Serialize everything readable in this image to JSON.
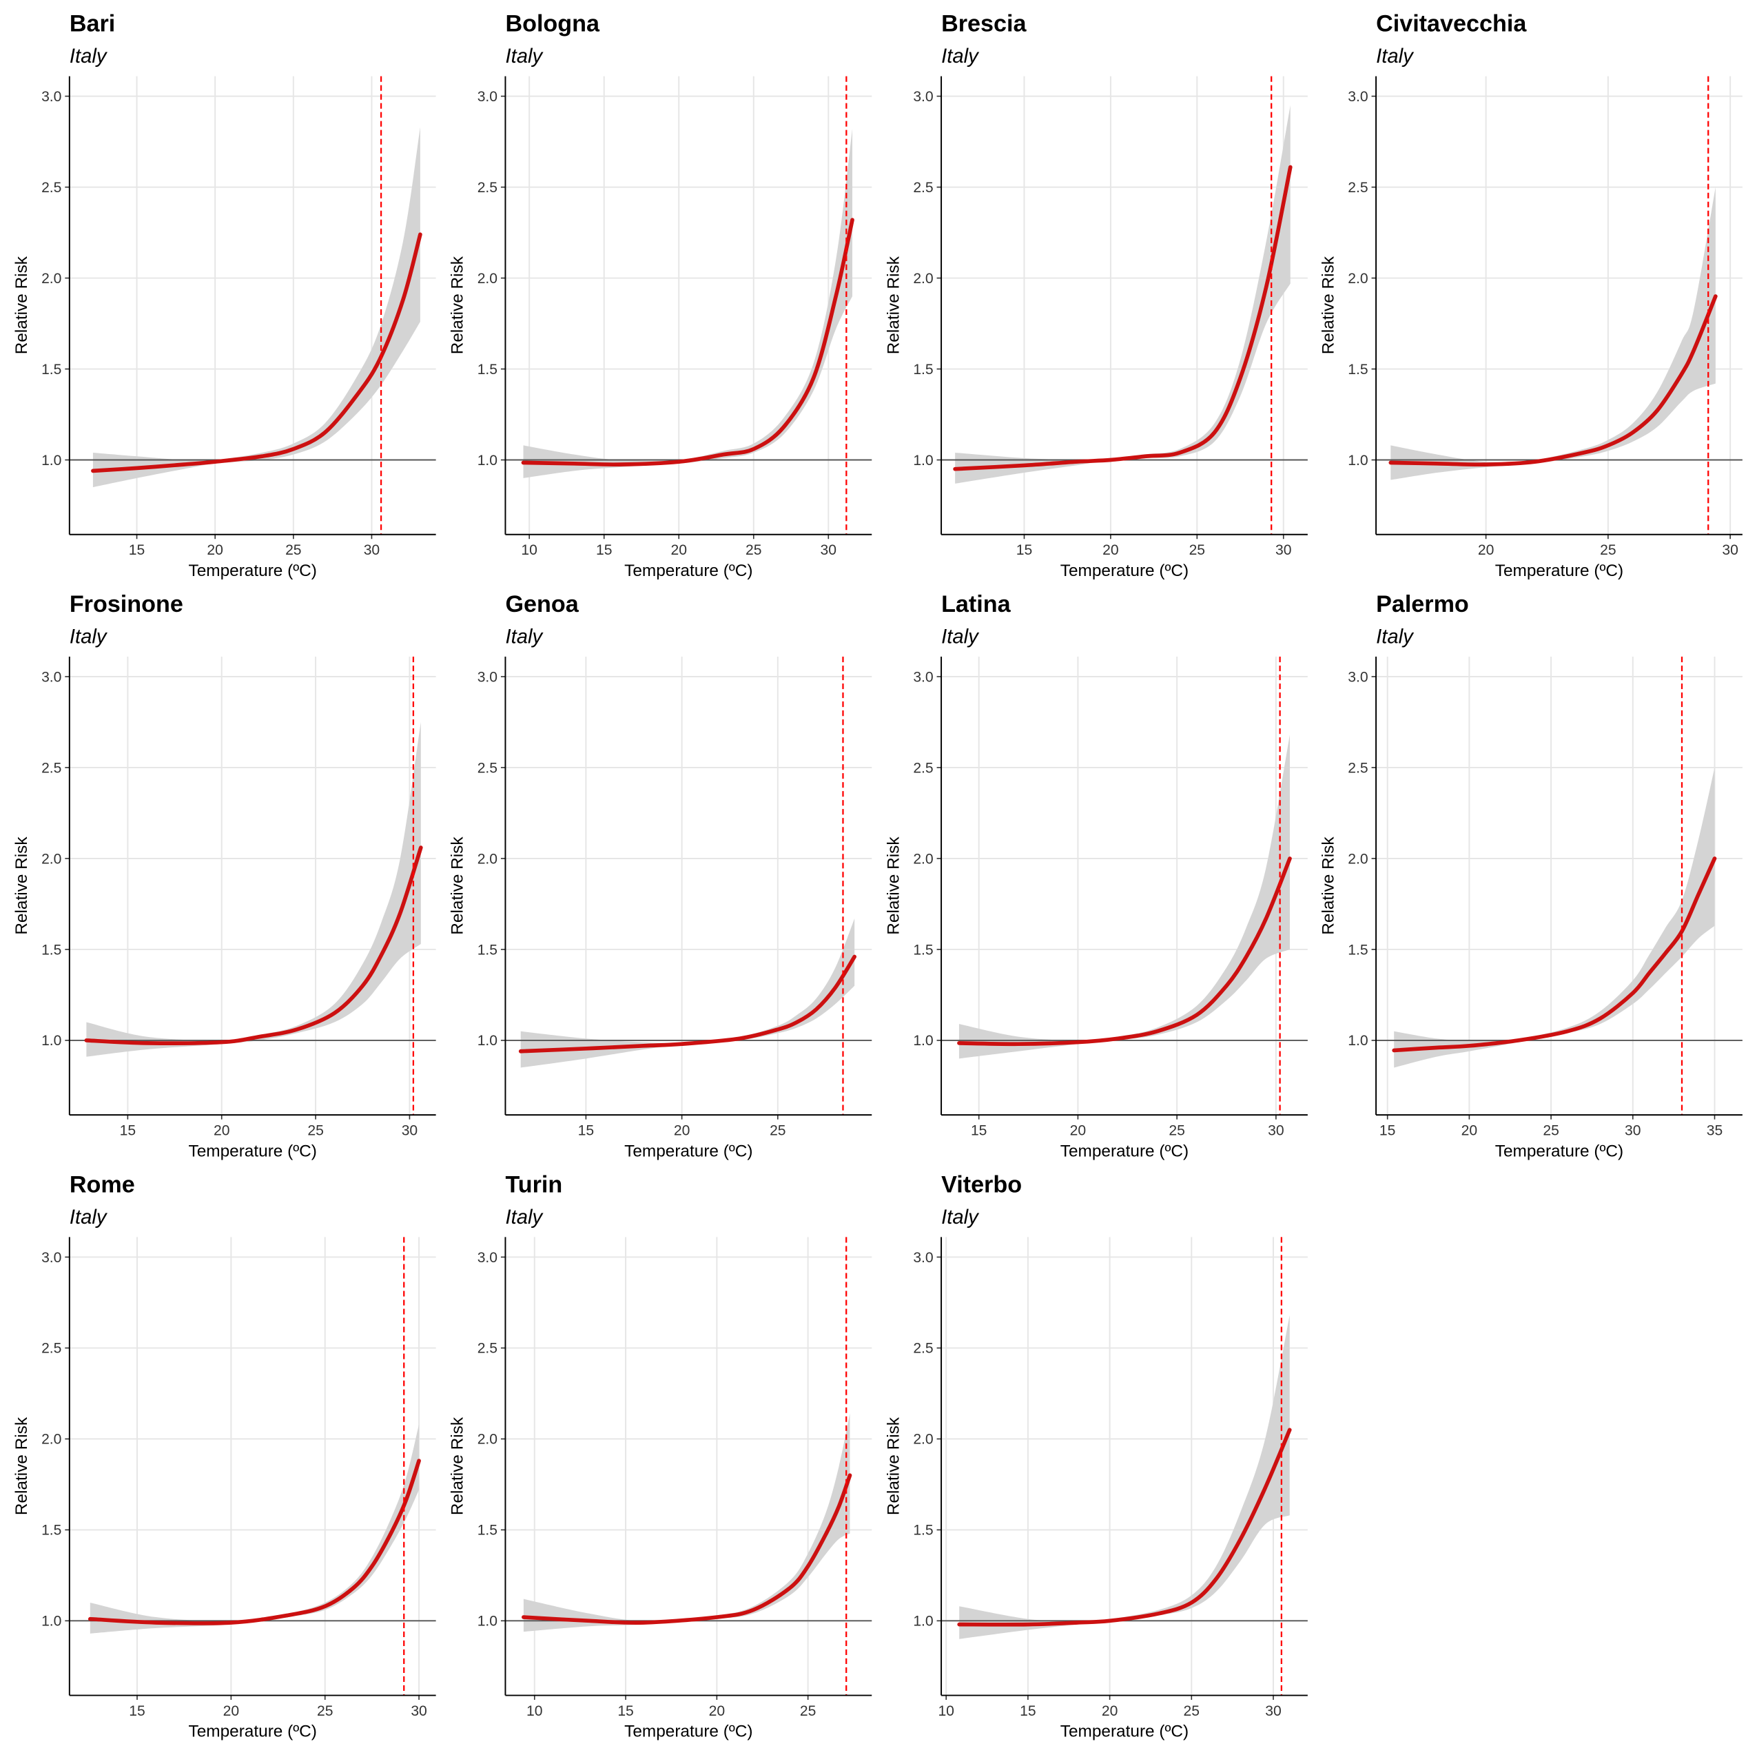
{
  "chart_data": [
    {
      "type": "line",
      "title": "Bari",
      "subtitle": "Italy",
      "x_label": "Temperature (ºC)",
      "y_label": "Relative Risk",
      "x": [
        12.2,
        15,
        18,
        20,
        23,
        25,
        27,
        29,
        30.5,
        32,
        33.1
      ],
      "values": [
        0.94,
        0.955,
        0.975,
        0.99,
        1.02,
        1.06,
        1.15,
        1.35,
        1.55,
        1.88,
        2.24
      ],
      "lower": [
        0.85,
        0.9,
        0.95,
        0.98,
        1.0,
        1.03,
        1.1,
        1.25,
        1.4,
        1.6,
        1.76
      ],
      "upper": [
        1.04,
        1.02,
        1.0,
        1.0,
        1.04,
        1.09,
        1.2,
        1.45,
        1.72,
        2.2,
        2.83
      ],
      "vline": 30.6,
      "hline": 1,
      "xlim": [
        10.7,
        34.1
      ],
      "xticks": [
        15,
        20,
        25,
        30
      ],
      "ylim": [
        0.59,
        3.11
      ],
      "yticks": [
        {
          "value": 1,
          "label": "1.0"
        },
        {
          "value": 1.5,
          "label": "1.5"
        },
        {
          "value": 2,
          "label": "2.0"
        },
        {
          "value": 2.5,
          "label": "2.5"
        },
        {
          "value": 3,
          "label": "3.0"
        }
      ],
      "grid": true,
      "color": "#cc1010",
      "band_color": "#d4d4d4",
      "vline_color": "#ff0000"
    },
    {
      "type": "line",
      "title": "Bologna",
      "subtitle": "Italy",
      "x_label": "Temperature (ºC)",
      "y_label": "Relative Risk",
      "x": [
        9.6,
        13,
        16,
        20,
        23,
        25,
        27,
        29,
        30.5,
        31.6
      ],
      "values": [
        0.985,
        0.98,
        0.975,
        0.99,
        1.03,
        1.06,
        1.18,
        1.45,
        1.9,
        2.32
      ],
      "lower": [
        0.9,
        0.94,
        0.96,
        0.98,
        1.01,
        1.04,
        1.14,
        1.38,
        1.72,
        1.9
      ],
      "upper": [
        1.08,
        1.03,
        1.0,
        1.0,
        1.05,
        1.09,
        1.23,
        1.53,
        2.1,
        2.82
      ],
      "vline": 31.2,
      "hline": 1,
      "xlim": [
        8.4,
        32.9
      ],
      "xticks": [
        10,
        15,
        20,
        25,
        30
      ],
      "ylim": [
        0.59,
        3.11
      ],
      "yticks": [
        {
          "value": 1,
          "label": "1.0"
        },
        {
          "value": 1.5,
          "label": "1.5"
        },
        {
          "value": 2,
          "label": "2.0"
        },
        {
          "value": 2.5,
          "label": "2.5"
        },
        {
          "value": 3,
          "label": "3.0"
        }
      ],
      "grid": true,
      "color": "#cc1010",
      "band_color": "#d4d4d4",
      "vline_color": "#ff0000"
    },
    {
      "type": "line",
      "title": "Brescia",
      "subtitle": "Italy",
      "x_label": "Temperature (ºC)",
      "y_label": "Relative Risk",
      "x": [
        11,
        15,
        18,
        20,
        22,
        24,
        26,
        27.5,
        29,
        30.4
      ],
      "values": [
        0.95,
        0.97,
        0.99,
        1.0,
        1.02,
        1.04,
        1.15,
        1.45,
        1.95,
        2.61
      ],
      "lower": [
        0.87,
        0.93,
        0.97,
        1.0,
        1.01,
        1.02,
        1.1,
        1.35,
        1.75,
        1.97
      ],
      "upper": [
        1.04,
        1.01,
        1.0,
        1.0,
        1.03,
        1.06,
        1.2,
        1.55,
        2.2,
        2.95
      ],
      "vline": 29.3,
      "hline": 1,
      "xlim": [
        10.2,
        31.4
      ],
      "xticks": [
        15,
        20,
        25,
        30
      ],
      "ylim": [
        0.59,
        3.11
      ],
      "yticks": [
        {
          "value": 1,
          "label": "1.0"
        },
        {
          "value": 1.5,
          "label": "1.5"
        },
        {
          "value": 2,
          "label": "2.0"
        },
        {
          "value": 2.5,
          "label": "2.5"
        },
        {
          "value": 3,
          "label": "3.0"
        }
      ],
      "grid": true,
      "color": "#cc1010",
      "band_color": "#d4d4d4",
      "vline_color": "#ff0000"
    },
    {
      "type": "line",
      "title": "Civitavecchia",
      "subtitle": "Italy",
      "x_label": "Temperature (ºC)",
      "y_label": "Relative Risk",
      "x": [
        16.1,
        18,
        20,
        22,
        24,
        25,
        26,
        27,
        28,
        28.5,
        29.4
      ],
      "values": [
        0.985,
        0.98,
        0.975,
        0.99,
        1.04,
        1.08,
        1.15,
        1.27,
        1.47,
        1.6,
        1.9
      ],
      "lower": [
        0.89,
        0.93,
        0.96,
        0.98,
        1.02,
        1.05,
        1.1,
        1.18,
        1.32,
        1.38,
        1.42
      ],
      "upper": [
        1.08,
        1.03,
        0.99,
        1.0,
        1.06,
        1.11,
        1.2,
        1.37,
        1.65,
        1.82,
        2.5
      ],
      "vline": 29.1,
      "hline": 1,
      "xlim": [
        15.5,
        30.5
      ],
      "xticks": [
        20,
        25,
        30
      ],
      "ylim": [
        0.59,
        3.11
      ],
      "yticks": [
        {
          "value": 1,
          "label": "1.0"
        },
        {
          "value": 1.5,
          "label": "1.5"
        },
        {
          "value": 2,
          "label": "2.0"
        },
        {
          "value": 2.5,
          "label": "2.5"
        },
        {
          "value": 3,
          "label": "3.0"
        }
      ],
      "grid": true,
      "color": "#cc1010",
      "band_color": "#d4d4d4",
      "vline_color": "#ff0000"
    },
    {
      "type": "line",
      "title": "Frosinone",
      "subtitle": "Italy",
      "x_label": "Temperature (ºC)",
      "y_label": "Relative Risk",
      "x": [
        12.8,
        16,
        20,
        22,
        24,
        26,
        27.5,
        28.5,
        29.5,
        30.6
      ],
      "values": [
        1.0,
        0.985,
        0.99,
        1.02,
        1.06,
        1.15,
        1.3,
        1.47,
        1.7,
        2.06
      ],
      "lower": [
        0.91,
        0.95,
        0.98,
        1.0,
        1.04,
        1.1,
        1.2,
        1.32,
        1.45,
        1.53
      ],
      "upper": [
        1.1,
        1.02,
        1.0,
        1.03,
        1.08,
        1.2,
        1.42,
        1.65,
        2.0,
        2.75
      ],
      "vline": 30.2,
      "hline": 1,
      "xlim": [
        11.9,
        31.4
      ],
      "xticks": [
        15,
        20,
        25,
        30
      ],
      "ylim": [
        0.59,
        3.11
      ],
      "yticks": [
        {
          "value": 1,
          "label": "1.0"
        },
        {
          "value": 1.5,
          "label": "1.5"
        },
        {
          "value": 2,
          "label": "2.0"
        },
        {
          "value": 2.5,
          "label": "2.5"
        },
        {
          "value": 3,
          "label": "3.0"
        }
      ],
      "grid": true,
      "color": "#cc1010",
      "band_color": "#d4d4d4",
      "vline_color": "#ff0000"
    },
    {
      "type": "line",
      "title": "Genoa",
      "subtitle": "Italy",
      "x_label": "Temperature (ºC)",
      "y_label": "Relative Risk",
      "x": [
        11.6,
        15,
        18,
        20,
        23,
        25,
        26,
        27,
        28,
        29
      ],
      "values": [
        0.94,
        0.955,
        0.97,
        0.98,
        1.01,
        1.06,
        1.1,
        1.17,
        1.29,
        1.46
      ],
      "lower": [
        0.85,
        0.9,
        0.95,
        0.975,
        1.0,
        1.04,
        1.07,
        1.12,
        1.2,
        1.3
      ],
      "upper": [
        1.05,
        1.01,
        0.99,
        0.99,
        1.02,
        1.08,
        1.14,
        1.23,
        1.4,
        1.67
      ],
      "vline": 28.4,
      "hline": 1,
      "xlim": [
        10.8,
        29.9
      ],
      "xticks": [
        15,
        20,
        25
      ],
      "ylim": [
        0.59,
        3.11
      ],
      "yticks": [
        {
          "value": 1,
          "label": "1.0"
        },
        {
          "value": 1.5,
          "label": "1.5"
        },
        {
          "value": 2,
          "label": "2.0"
        },
        {
          "value": 2.5,
          "label": "2.5"
        },
        {
          "value": 3,
          "label": "3.0"
        }
      ],
      "grid": true,
      "color": "#cc1010",
      "band_color": "#d4d4d4",
      "vline_color": "#ff0000"
    },
    {
      "type": "line",
      "title": "Latina",
      "subtitle": "Italy",
      "x_label": "Temperature (ºC)",
      "y_label": "Relative Risk",
      "x": [
        14,
        17,
        20,
        22,
        24,
        26,
        27.5,
        28.5,
        29.5,
        30.7
      ],
      "values": [
        0.985,
        0.98,
        0.99,
        1.01,
        1.05,
        1.14,
        1.3,
        1.46,
        1.67,
        2.0
      ],
      "lower": [
        0.9,
        0.94,
        0.98,
        1.0,
        1.03,
        1.1,
        1.22,
        1.33,
        1.45,
        1.5
      ],
      "upper": [
        1.09,
        1.02,
        1.0,
        1.02,
        1.07,
        1.19,
        1.4,
        1.62,
        1.95,
        2.68
      ],
      "vline": 30.2,
      "hline": 1,
      "xlim": [
        13.1,
        31.6
      ],
      "xticks": [
        15,
        20,
        25,
        30
      ],
      "ylim": [
        0.59,
        3.11
      ],
      "yticks": [
        {
          "value": 1,
          "label": "1.0"
        },
        {
          "value": 1.5,
          "label": "1.5"
        },
        {
          "value": 2,
          "label": "2.0"
        },
        {
          "value": 2.5,
          "label": "2.5"
        },
        {
          "value": 3,
          "label": "3.0"
        }
      ],
      "grid": true,
      "color": "#cc1010",
      "band_color": "#d4d4d4",
      "vline_color": "#ff0000"
    },
    {
      "type": "line",
      "title": "Palermo",
      "subtitle": "Italy",
      "x_label": "Temperature (ºC)",
      "y_label": "Relative Risk",
      "x": [
        15.4,
        18,
        20,
        23,
        26,
        28,
        30,
        31,
        32,
        33,
        34,
        35
      ],
      "values": [
        0.945,
        0.96,
        0.97,
        1.0,
        1.05,
        1.12,
        1.26,
        1.37,
        1.48,
        1.6,
        1.8,
        2.0
      ],
      "lower": [
        0.85,
        0.91,
        0.94,
        0.99,
        1.04,
        1.09,
        1.2,
        1.28,
        1.37,
        1.46,
        1.56,
        1.63
      ],
      "upper": [
        1.05,
        1.01,
        1.0,
        1.01,
        1.07,
        1.16,
        1.33,
        1.47,
        1.62,
        1.77,
        2.1,
        2.5
      ],
      "vline": 33.0,
      "hline": 1,
      "xlim": [
        14.3,
        36.7
      ],
      "xticks": [
        15,
        20,
        25,
        30,
        35
      ],
      "ylim": [
        0.59,
        3.11
      ],
      "yticks": [
        {
          "value": 1,
          "label": "1.0"
        },
        {
          "value": 1.5,
          "label": "1.5"
        },
        {
          "value": 2,
          "label": "2.0"
        },
        {
          "value": 2.5,
          "label": "2.5"
        },
        {
          "value": 3,
          "label": "3.0"
        }
      ],
      "grid": true,
      "color": "#cc1010",
      "band_color": "#d4d4d4",
      "vline_color": "#ff0000"
    },
    {
      "type": "line",
      "title": "Rome",
      "subtitle": "Italy",
      "x_label": "Temperature (ºC)",
      "y_label": "Relative Risk",
      "x": [
        12.5,
        16,
        20,
        23,
        25,
        26.5,
        27.5,
        28.5,
        29.3,
        30
      ],
      "values": [
        1.01,
        0.99,
        0.99,
        1.03,
        1.08,
        1.18,
        1.3,
        1.48,
        1.66,
        1.88
      ],
      "lower": [
        0.93,
        0.96,
        0.98,
        1.02,
        1.06,
        1.15,
        1.25,
        1.41,
        1.56,
        1.72
      ],
      "upper": [
        1.1,
        1.02,
        1.0,
        1.04,
        1.1,
        1.21,
        1.35,
        1.56,
        1.78,
        2.08
      ],
      "vline": 29.2,
      "hline": 1,
      "xlim": [
        11.4,
        30.9
      ],
      "xticks": [
        15,
        20,
        25,
        30
      ],
      "ylim": [
        0.59,
        3.11
      ],
      "yticks": [
        {
          "value": 1,
          "label": "1.0"
        },
        {
          "value": 1.5,
          "label": "1.5"
        },
        {
          "value": 2,
          "label": "2.0"
        },
        {
          "value": 2.5,
          "label": "2.5"
        },
        {
          "value": 3,
          "label": "3.0"
        }
      ],
      "grid": true,
      "color": "#cc1010",
      "band_color": "#d4d4d4",
      "vline_color": "#ff0000"
    },
    {
      "type": "line",
      "title": "Turin",
      "subtitle": "Italy",
      "x_label": "Temperature (ºC)",
      "y_label": "Relative Risk",
      "x": [
        9.4,
        13,
        16,
        20,
        22,
        24,
        25,
        26,
        26.7,
        27.3
      ],
      "values": [
        1.02,
        1.0,
        0.99,
        1.02,
        1.06,
        1.18,
        1.3,
        1.48,
        1.63,
        1.8
      ],
      "lower": [
        0.94,
        0.97,
        0.98,
        1.01,
        1.04,
        1.14,
        1.24,
        1.37,
        1.45,
        1.48
      ],
      "upper": [
        1.12,
        1.04,
        1.0,
        1.03,
        1.08,
        1.22,
        1.37,
        1.6,
        1.85,
        2.14
      ],
      "vline": 27.1,
      "hline": 1,
      "xlim": [
        8.4,
        28.5
      ],
      "xticks": [
        10,
        15,
        20,
        25
      ],
      "ylim": [
        0.59,
        3.11
      ],
      "yticks": [
        {
          "value": 1,
          "label": "1.0"
        },
        {
          "value": 1.5,
          "label": "1.5"
        },
        {
          "value": 2,
          "label": "2.0"
        },
        {
          "value": 2.5,
          "label": "2.5"
        },
        {
          "value": 3,
          "label": "3.0"
        }
      ],
      "grid": true,
      "color": "#cc1010",
      "band_color": "#d4d4d4",
      "vline_color": "#ff0000"
    },
    {
      "type": "line",
      "title": "Viterbo",
      "subtitle": "Italy",
      "x_label": "Temperature (ºC)",
      "y_label": "Relative Risk",
      "x": [
        10.8,
        15,
        18,
        20,
        23,
        25,
        26.5,
        28,
        29.5,
        31
      ],
      "values": [
        0.98,
        0.98,
        0.99,
        1.0,
        1.04,
        1.1,
        1.23,
        1.45,
        1.73,
        2.05
      ],
      "lower": [
        0.9,
        0.95,
        0.98,
        1.0,
        1.03,
        1.07,
        1.16,
        1.33,
        1.53,
        1.58
      ],
      "upper": [
        1.08,
        1.01,
        1.0,
        1.01,
        1.06,
        1.14,
        1.3,
        1.6,
        2.0,
        2.68
      ],
      "vline": 30.5,
      "hline": 1,
      "xlim": [
        9.7,
        32.1
      ],
      "xticks": [
        10,
        15,
        20,
        25,
        30
      ],
      "ylim": [
        0.59,
        3.11
      ],
      "yticks": [
        {
          "value": 1,
          "label": "1.0"
        },
        {
          "value": 1.5,
          "label": "1.5"
        },
        {
          "value": 2,
          "label": "2.0"
        },
        {
          "value": 2.5,
          "label": "2.5"
        },
        {
          "value": 3,
          "label": "3.0"
        }
      ],
      "grid": true,
      "color": "#cc1010",
      "band_color": "#d4d4d4",
      "vline_color": "#ff0000"
    }
  ]
}
